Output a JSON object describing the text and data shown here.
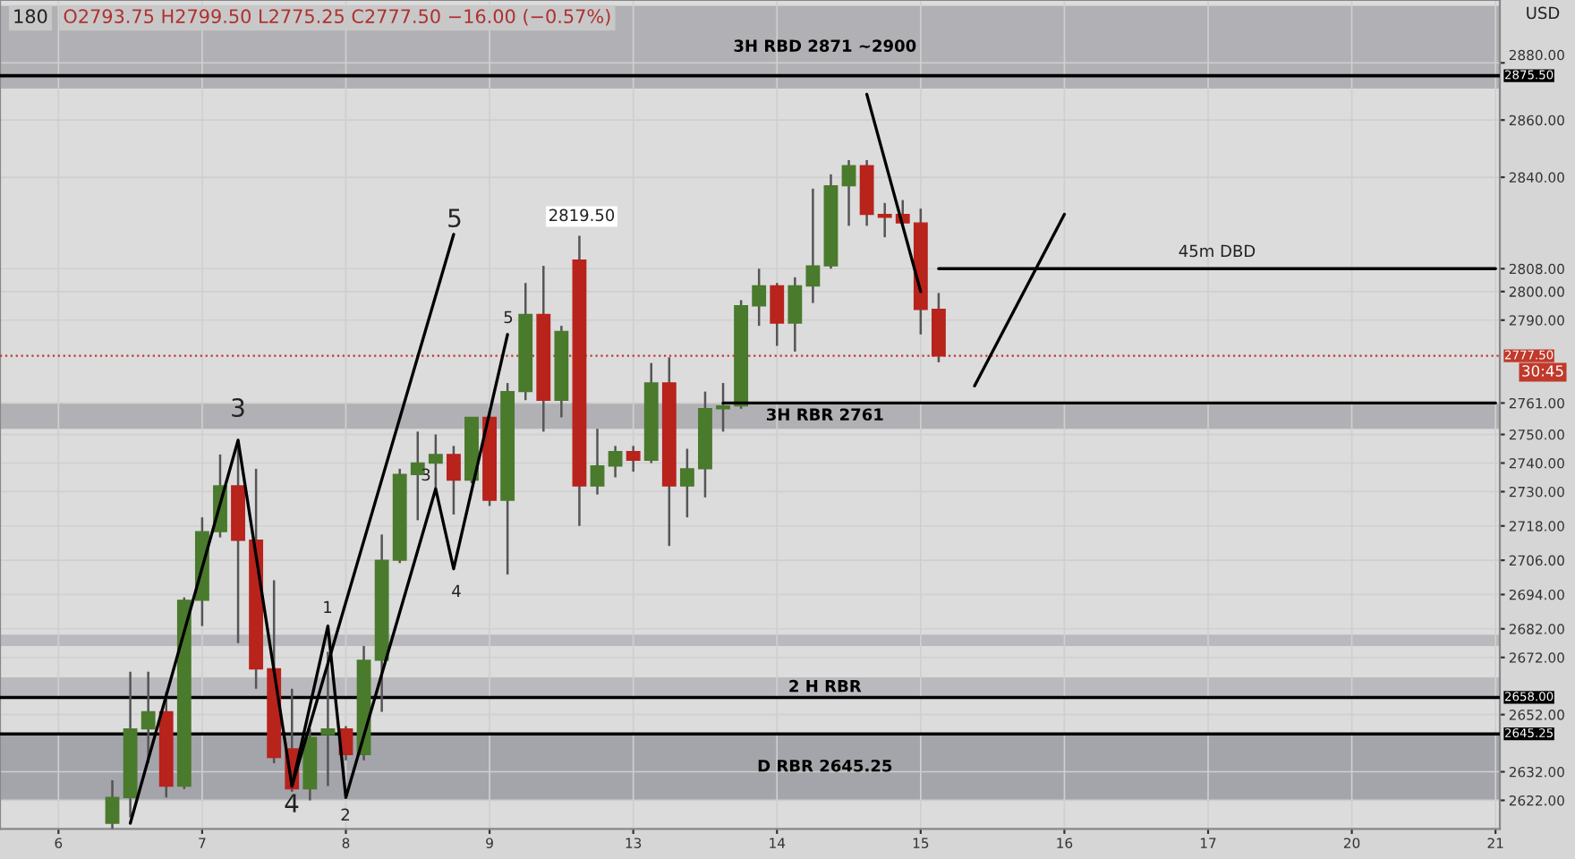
{
  "chart_data": {
    "type": "candlestick",
    "title": "180",
    "subtitle": "O2793.75 H2799.50 L2775.25 C2777.50 −16.00 (−0.57%)",
    "categories": [
      "6",
      null,
      null,
      null,
      null,
      null,
      null,
      null,
      "7",
      null,
      null,
      null,
      null,
      null,
      null,
      null,
      "8",
      null,
      null,
      null,
      null,
      null,
      null,
      null,
      "9",
      null,
      null,
      null,
      null,
      null,
      null,
      null,
      "13",
      null,
      null,
      null,
      null,
      null,
      null,
      null,
      "14",
      null,
      null,
      null,
      null,
      null,
      null,
      null,
      "15",
      null,
      null,
      null,
      null,
      null,
      null,
      null,
      "16",
      null,
      null,
      null,
      null,
      null,
      null,
      null,
      "17",
      null,
      null,
      null,
      null,
      null,
      null,
      null,
      "20",
      null,
      null,
      null,
      null,
      null,
      null,
      null,
      "21"
    ],
    "ohlc": [
      null,
      null,
      null,
      [
        2614,
        2629,
        2612,
        2623
      ],
      [
        2623,
        2667,
        2616,
        2647
      ],
      [
        2647,
        2667,
        2635,
        2653
      ],
      [
        2653,
        2660,
        2623,
        2627
      ],
      [
        2627,
        2693,
        2626,
        2692
      ],
      [
        2692,
        2721,
        2683,
        2716
      ],
      [
        2716,
        2743,
        2714,
        2732
      ],
      [
        2732,
        2748,
        2677,
        2713
      ],
      [
        2713,
        2738,
        2661,
        2668
      ],
      [
        2668,
        2699,
        2635,
        2637
      ],
      [
        2640,
        2661,
        2625,
        2626
      ],
      [
        2626,
        2647,
        2622,
        2644
      ],
      [
        2645,
        2674,
        2627,
        2647
      ],
      [
        2647,
        2648,
        2636,
        2638
      ],
      [
        2638,
        2676,
        2636,
        2671
      ],
      [
        2671,
        2715,
        2653,
        2706
      ],
      [
        2706,
        2738,
        2705,
        2736
      ],
      [
        2736,
        2751,
        2720,
        2740
      ],
      [
        2740,
        2750,
        2730,
        2743
      ],
      [
        2743,
        2746,
        2722,
        2734
      ],
      [
        2734,
        2756,
        2733,
        2756
      ],
      [
        2756,
        2757,
        2725,
        2727
      ],
      [
        2727,
        2768,
        2701,
        2765
      ],
      [
        2765,
        2803,
        2762,
        2792
      ],
      [
        2792,
        2809,
        2751,
        2762
      ],
      [
        2762,
        2788,
        2756,
        2786
      ],
      [
        2811,
        2819.5,
        2718,
        2732
      ],
      [
        2732,
        2752,
        2729,
        2739
      ],
      [
        2739,
        2746,
        2735,
        2744
      ],
      [
        2744,
        2746,
        2737,
        2741
      ],
      [
        2741,
        2775,
        2740,
        2768
      ],
      [
        2768,
        2777,
        2711,
        2732
      ],
      [
        2732,
        2745,
        2721,
        2738
      ],
      [
        2738,
        2765,
        2728,
        2759
      ],
      [
        2759,
        2768,
        2751,
        2760
      ],
      [
        2760,
        2797,
        2759,
        2795
      ],
      [
        2795,
        2808,
        2788,
        2802
      ],
      [
        2802,
        2803,
        2781,
        2789
      ],
      [
        2789,
        2805,
        2779,
        2802
      ],
      [
        2802,
        2836,
        2796,
        2809
      ],
      [
        2809,
        2841,
        2808,
        2837
      ],
      [
        2837,
        2846,
        2823,
        2844
      ],
      [
        2844,
        2846,
        2823,
        2827
      ],
      [
        2827,
        2831,
        2819,
        2826
      ],
      [
        2827,
        2832,
        2823,
        2824
      ],
      [
        2824,
        2829,
        2785,
        2793.75
      ],
      [
        2793.75,
        2799.5,
        2775.25,
        2777.5
      ],
      null,
      null,
      null,
      null,
      null,
      null,
      null,
      null,
      null,
      null,
      null,
      null,
      null,
      null,
      null,
      null,
      null,
      null,
      null,
      null,
      null,
      null,
      null,
      null,
      null,
      null,
      null,
      null,
      null,
      null,
      null
    ],
    "colors": [
      null,
      null,
      null,
      "#4a7a2c",
      "#4a7a2c",
      "#4a7a2c",
      "#b8231c",
      "#4a7a2c",
      "#4a7a2c",
      "#4a7a2c",
      "#b8231c",
      "#b8231c",
      "#b8231c",
      "#b8231c",
      "#4a7a2c",
      "#4a7a2c",
      "#b8231c",
      "#4a7a2c",
      "#4a7a2c",
      "#4a7a2c",
      "#4a7a2c",
      "#4a7a2c",
      "#b8231c",
      "#4a7a2c",
      "#b8231c",
      "#4a7a2c",
      "#4a7a2c",
      "#b8231c",
      "#4a7a2c",
      "#b8231c",
      "#4a7a2c",
      "#4a7a2c",
      "#b8231c",
      "#4a7a2c",
      "#b8231c",
      "#4a7a2c",
      "#4a7a2c",
      "#4a7a2c",
      "#4a7a2c",
      "#4a7a2c",
      "#b8231c",
      "#4a7a2c",
      "#4a7a2c",
      "#4a7a2c",
      "#4a7a2c",
      "#b8231c",
      "#b8231c",
      "#b8231c",
      "#b8231c",
      "#b8231c",
      null,
      null,
      null,
      null,
      null,
      null,
      null,
      null,
      null,
      null,
      null,
      null,
      null,
      null,
      null,
      null,
      null,
      null,
      null,
      null,
      null,
      null,
      null,
      null,
      null,
      null,
      null,
      null,
      null,
      null,
      null
    ],
    "series": [
      {
        "type": "line",
        "color": "#000000",
        "values": [
          null,
          null,
          null,
          null,
          null,
          null,
          null,
          null,
          null,
          null,
          null,
          null,
          null,
          2627,
          null,
          2683,
          2623,
          null,
          null,
          null,
          null,
          2731,
          2703,
          null,
          null,
          2785,
          null,
          null,
          null,
          null,
          null,
          null,
          null,
          null,
          null,
          null,
          null,
          null,
          null,
          null,
          null,
          null,
          null,
          null,
          null,
          null,
          null,
          null,
          null,
          null,
          null,
          null,
          null,
          null,
          null,
          null,
          null,
          null,
          null,
          null,
          null,
          null,
          null,
          null,
          null,
          null,
          null,
          null,
          null,
          null,
          null,
          null,
          null,
          null,
          null,
          null,
          null,
          null,
          null,
          null,
          null
        ]
      },
      {
        "type": "line",
        "color": "#000000",
        "values": [
          null,
          null,
          null,
          null,
          2614,
          null,
          null,
          null,
          null,
          null,
          2748,
          null,
          null,
          2627,
          null,
          null,
          null,
          null,
          null,
          null,
          null,
          null,
          null,
          null,
          null,
          null,
          null,
          null,
          null,
          null,
          null,
          null,
          null,
          null,
          null,
          null,
          null,
          null,
          null,
          null,
          null,
          null,
          null,
          null,
          null,
          null,
          null,
          null,
          null,
          null,
          null,
          null,
          null,
          null,
          null,
          null,
          null,
          null,
          null,
          null,
          null,
          null,
          null,
          null,
          null,
          null,
          null,
          null,
          null,
          null,
          null,
          null,
          null,
          null,
          null,
          null,
          null,
          null,
          null,
          null,
          null
        ]
      },
      {
        "type": "line",
        "color": "#000000",
        "values": [
          null,
          null,
          null,
          null,
          null,
          null,
          null,
          null,
          null,
          null,
          null,
          null,
          null,
          2627,
          null,
          null,
          null,
          null,
          null,
          null,
          null,
          null,
          2820,
          null,
          null,
          null,
          null,
          null,
          null,
          null,
          null,
          null,
          null,
          null,
          null,
          null,
          null,
          null,
          null,
          null,
          null,
          null,
          null,
          null,
          null,
          null,
          null,
          null,
          null,
          null,
          null,
          null,
          null,
          null,
          null,
          null,
          null,
          null,
          null,
          null,
          null,
          null,
          null,
          null,
          null,
          null,
          null,
          null,
          null,
          null,
          null,
          null,
          null,
          null,
          null,
          null,
          null,
          null,
          null,
          null,
          null
        ]
      },
      {
        "type": "line",
        "color": "#000000",
        "values": [
          null,
          null,
          null,
          null,
          null,
          null,
          null,
          null,
          null,
          null,
          null,
          null,
          null,
          null,
          null,
          null,
          null,
          null,
          null,
          null,
          null,
          null,
          null,
          null,
          null,
          null,
          null,
          null,
          null,
          null,
          null,
          null,
          null,
          null,
          null,
          null,
          null,
          null,
          null,
          null,
          null,
          null,
          null,
          null,
          null,
          2869,
          null,
          null,
          2800,
          null,
          null,
          null,
          null,
          null,
          null,
          null,
          null,
          null,
          null,
          null,
          null,
          null,
          null,
          null,
          null,
          null,
          null,
          null,
          null,
          null,
          null,
          null,
          null,
          null,
          null,
          null,
          null,
          null,
          null,
          null,
          null
        ]
      },
      {
        "type": "line",
        "color": "#000000",
        "values": [
          null,
          null,
          null,
          null,
          null,
          null,
          null,
          null,
          null,
          null,
          null,
          null,
          null,
          null,
          null,
          null,
          null,
          null,
          null,
          null,
          null,
          null,
          null,
          null,
          null,
          null,
          null,
          null,
          null,
          null,
          null,
          null,
          null,
          null,
          null,
          null,
          null,
          null,
          null,
          null,
          null,
          null,
          null,
          null,
          null,
          null,
          null,
          null,
          null,
          null,
          null,
          2767,
          null,
          null,
          null,
          null,
          2827,
          null,
          null,
          null,
          null,
          null,
          null,
          null,
          null,
          null,
          null,
          null,
          null,
          null,
          null,
          null,
          null,
          null,
          null,
          null,
          null,
          null,
          null,
          null,
          null
        ]
      },
      {
        "type": "line",
        "color": "#000000",
        "values": [
          null,
          null,
          null,
          null,
          null,
          null,
          null,
          null,
          null,
          null,
          null,
          null,
          null,
          null,
          null,
          null,
          null,
          null,
          null,
          null,
          null,
          null,
          null,
          null,
          null,
          null,
          null,
          null,
          null,
          null,
          null,
          null,
          null,
          null,
          null,
          null,
          null,
          null,
          null,
          null,
          null,
          null,
          null,
          null,
          null,
          null,
          null,
          null,
          null,
          2808,
          null,
          null,
          null,
          null,
          null,
          null,
          null,
          null,
          null,
          null,
          null,
          null,
          null,
          null,
          null,
          null,
          null,
          null,
          null,
          null,
          null,
          null,
          null,
          null,
          null,
          null,
          null,
          null,
          null,
          null,
          2808
        ]
      },
      {
        "type": "line",
        "color": "#000000",
        "values": [
          null,
          null,
          null,
          null,
          null,
          null,
          null,
          null,
          null,
          null,
          null,
          null,
          null,
          null,
          null,
          null,
          null,
          null,
          null,
          null,
          null,
          null,
          null,
          null,
          null,
          null,
          null,
          null,
          null,
          null,
          null,
          null,
          null,
          null,
          null,
          null,
          null,
          2761,
          null,
          null,
          null,
          null,
          null,
          null,
          null,
          null,
          null,
          null,
          null,
          null,
          null,
          null,
          null,
          null,
          null,
          null,
          null,
          null,
          null,
          null,
          null,
          null,
          null,
          null,
          null,
          null,
          null,
          null,
          null,
          null,
          null,
          null,
          null,
          null,
          null,
          null,
          null,
          null,
          null,
          null,
          2761
        ]
      }
    ],
    "ylim": [
      2612,
      2902
    ],
    "yticks": [
      {
        "value": 2622,
        "label": "2622.00"
      },
      {
        "value": 2632,
        "label": "2632.00"
      },
      {
        "value": 2652,
        "label": "2652.00"
      },
      {
        "value": 2672,
        "label": "2672.00"
      },
      {
        "value": 2682,
        "label": "2682.00"
      },
      {
        "value": 2694,
        "label": "2694.00"
      },
      {
        "value": 2706,
        "label": "2706.00"
      },
      {
        "value": 2718,
        "label": "2718.00"
      },
      {
        "value": 2730,
        "label": "2730.00"
      },
      {
        "value": 2740,
        "label": "2740.00"
      },
      {
        "value": 2750,
        "label": "2750.00"
      },
      {
        "value": 2761,
        "label": "2761.00"
      },
      {
        "value": 2790,
        "label": "2790.00"
      },
      {
        "value": 2800,
        "label": "2800.00"
      },
      {
        "value": 2808,
        "label": "2808.00"
      },
      {
        "value": 2840,
        "label": "2840.00"
      },
      {
        "value": 2860,
        "label": "2860.00"
      },
      {
        "value": 2880,
        "label": "2880.00"
      }
    ],
    "ref_lines": [
      {
        "axis": "y",
        "value": 2875.5,
        "label": "2875.50",
        "color": "#000000"
      },
      {
        "axis": "y",
        "value": 2658,
        "label": "2658.00",
        "color": "#000000"
      },
      {
        "axis": "y",
        "value": 2645.25,
        "label": "2645.25",
        "color": "#000000"
      },
      {
        "axis": "y",
        "value": 2777.5,
        "label": "2777.50",
        "color": "#c0392b",
        "line_style": "dotted"
      }
    ],
    "bands": [
      {
        "axis": "y",
        "from": 2871,
        "to": 2900,
        "label": "3H RBD 2871 ~2900",
        "color": "#a9a9ae"
      },
      {
        "axis": "y",
        "from": 2752,
        "to": 2761,
        "label": "3H RBR 2761",
        "color": "#a9a9ae"
      },
      {
        "axis": "y",
        "from": 2676,
        "to": 2680,
        "label": null,
        "color": "#b4b4b8"
      },
      {
        "axis": "y",
        "from": 2658,
        "to": 2665,
        "label": "2 H RBR",
        "color": "#b4b4b8"
      },
      {
        "axis": "y",
        "from": 2622,
        "to": 2645.25,
        "label": "D RBR 2645.25",
        "color": "#9a9aa2"
      }
    ],
    "annotations": [
      "2819.50",
      "45m DBD",
      "3",
      "4",
      "5",
      "1",
      "2",
      "3",
      "4",
      "5",
      "USD",
      "30:45"
    ],
    "grid": true,
    "legend": false
  }
}
